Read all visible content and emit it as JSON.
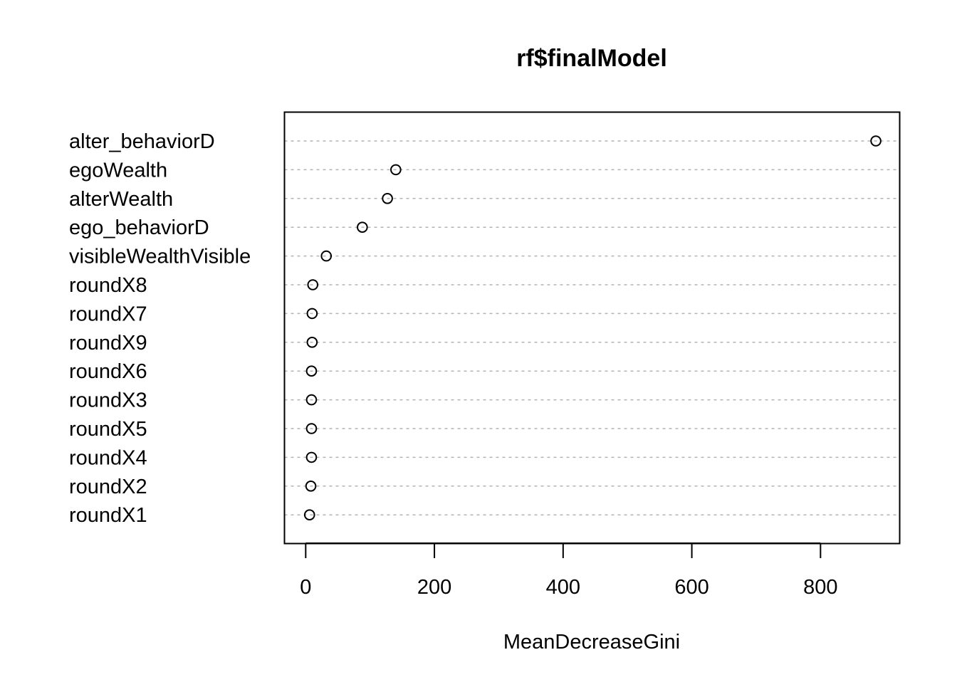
{
  "chart_data": {
    "type": "scatter",
    "title": "rf$finalModel",
    "xlabel": "MeanDecreaseGini",
    "ylabel": "",
    "xlim": [
      -33,
      923
    ],
    "xticks": [
      "0",
      "200",
      "400",
      "600",
      "800"
    ],
    "grid": true,
    "legend": "none",
    "categories": [
      "alter_behaviorD",
      "egoWealth",
      "alterWealth",
      "ego_behaviorD",
      "visibleWealthVisible",
      "roundX8",
      "roundX7",
      "roundX9",
      "roundX6",
      "roundX3",
      "roundX5",
      "roundX4",
      "roundX2",
      "roundX1"
    ],
    "values": [
      886,
      140,
      127,
      88,
      32,
      11,
      10,
      10,
      9,
      9,
      9,
      9,
      8,
      6
    ],
    "colors": {
      "point_stroke": "#000000",
      "grid": "#b3b3b3",
      "frame": "#000000"
    }
  }
}
